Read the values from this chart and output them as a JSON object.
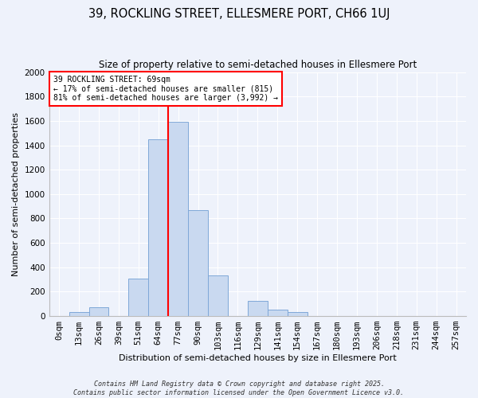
{
  "title": "39, ROCKLING STREET, ELLESMERE PORT, CH66 1UJ",
  "subtitle": "Size of property relative to semi-detached houses in Ellesmere Port",
  "xlabel": "Distribution of semi-detached houses by size in Ellesmere Port",
  "ylabel": "Number of semi-detached properties",
  "bar_labels": [
    "0sqm",
    "13sqm",
    "26sqm",
    "39sqm",
    "51sqm",
    "64sqm",
    "77sqm",
    "90sqm",
    "103sqm",
    "116sqm",
    "129sqm",
    "141sqm",
    "154sqm",
    "167sqm",
    "180sqm",
    "193sqm",
    "206sqm",
    "218sqm",
    "231sqm",
    "244sqm",
    "257sqm"
  ],
  "bar_heights": [
    0,
    30,
    75,
    0,
    310,
    1450,
    1590,
    870,
    335,
    0,
    125,
    55,
    30,
    0,
    0,
    0,
    0,
    0,
    0,
    0,
    0
  ],
  "bar_color": "#c9d9f0",
  "bar_edge_color": "#7fa8d8",
  "vline_x": 5.5,
  "vline_color": "red",
  "annotation_title": "39 ROCKLING STREET: 69sqm",
  "annotation_line1": "← 17% of semi-detached houses are smaller (815)",
  "annotation_line2": "81% of semi-detached houses are larger (3,992) →",
  "annotation_box_facecolor": "white",
  "annotation_box_edgecolor": "red",
  "ylim": [
    0,
    2000
  ],
  "yticks": [
    0,
    200,
    400,
    600,
    800,
    1000,
    1200,
    1400,
    1600,
    1800,
    2000
  ],
  "footer1": "Contains HM Land Registry data © Crown copyright and database right 2025.",
  "footer2": "Contains public sector information licensed under the Open Government Licence v3.0.",
  "bg_color": "#eef2fb",
  "grid_color": "white",
  "title_fontsize": 10.5,
  "subtitle_fontsize": 8.5,
  "tick_fontsize": 7.5,
  "label_fontsize": 8,
  "annotation_fontsize": 7,
  "footer_fontsize": 6
}
